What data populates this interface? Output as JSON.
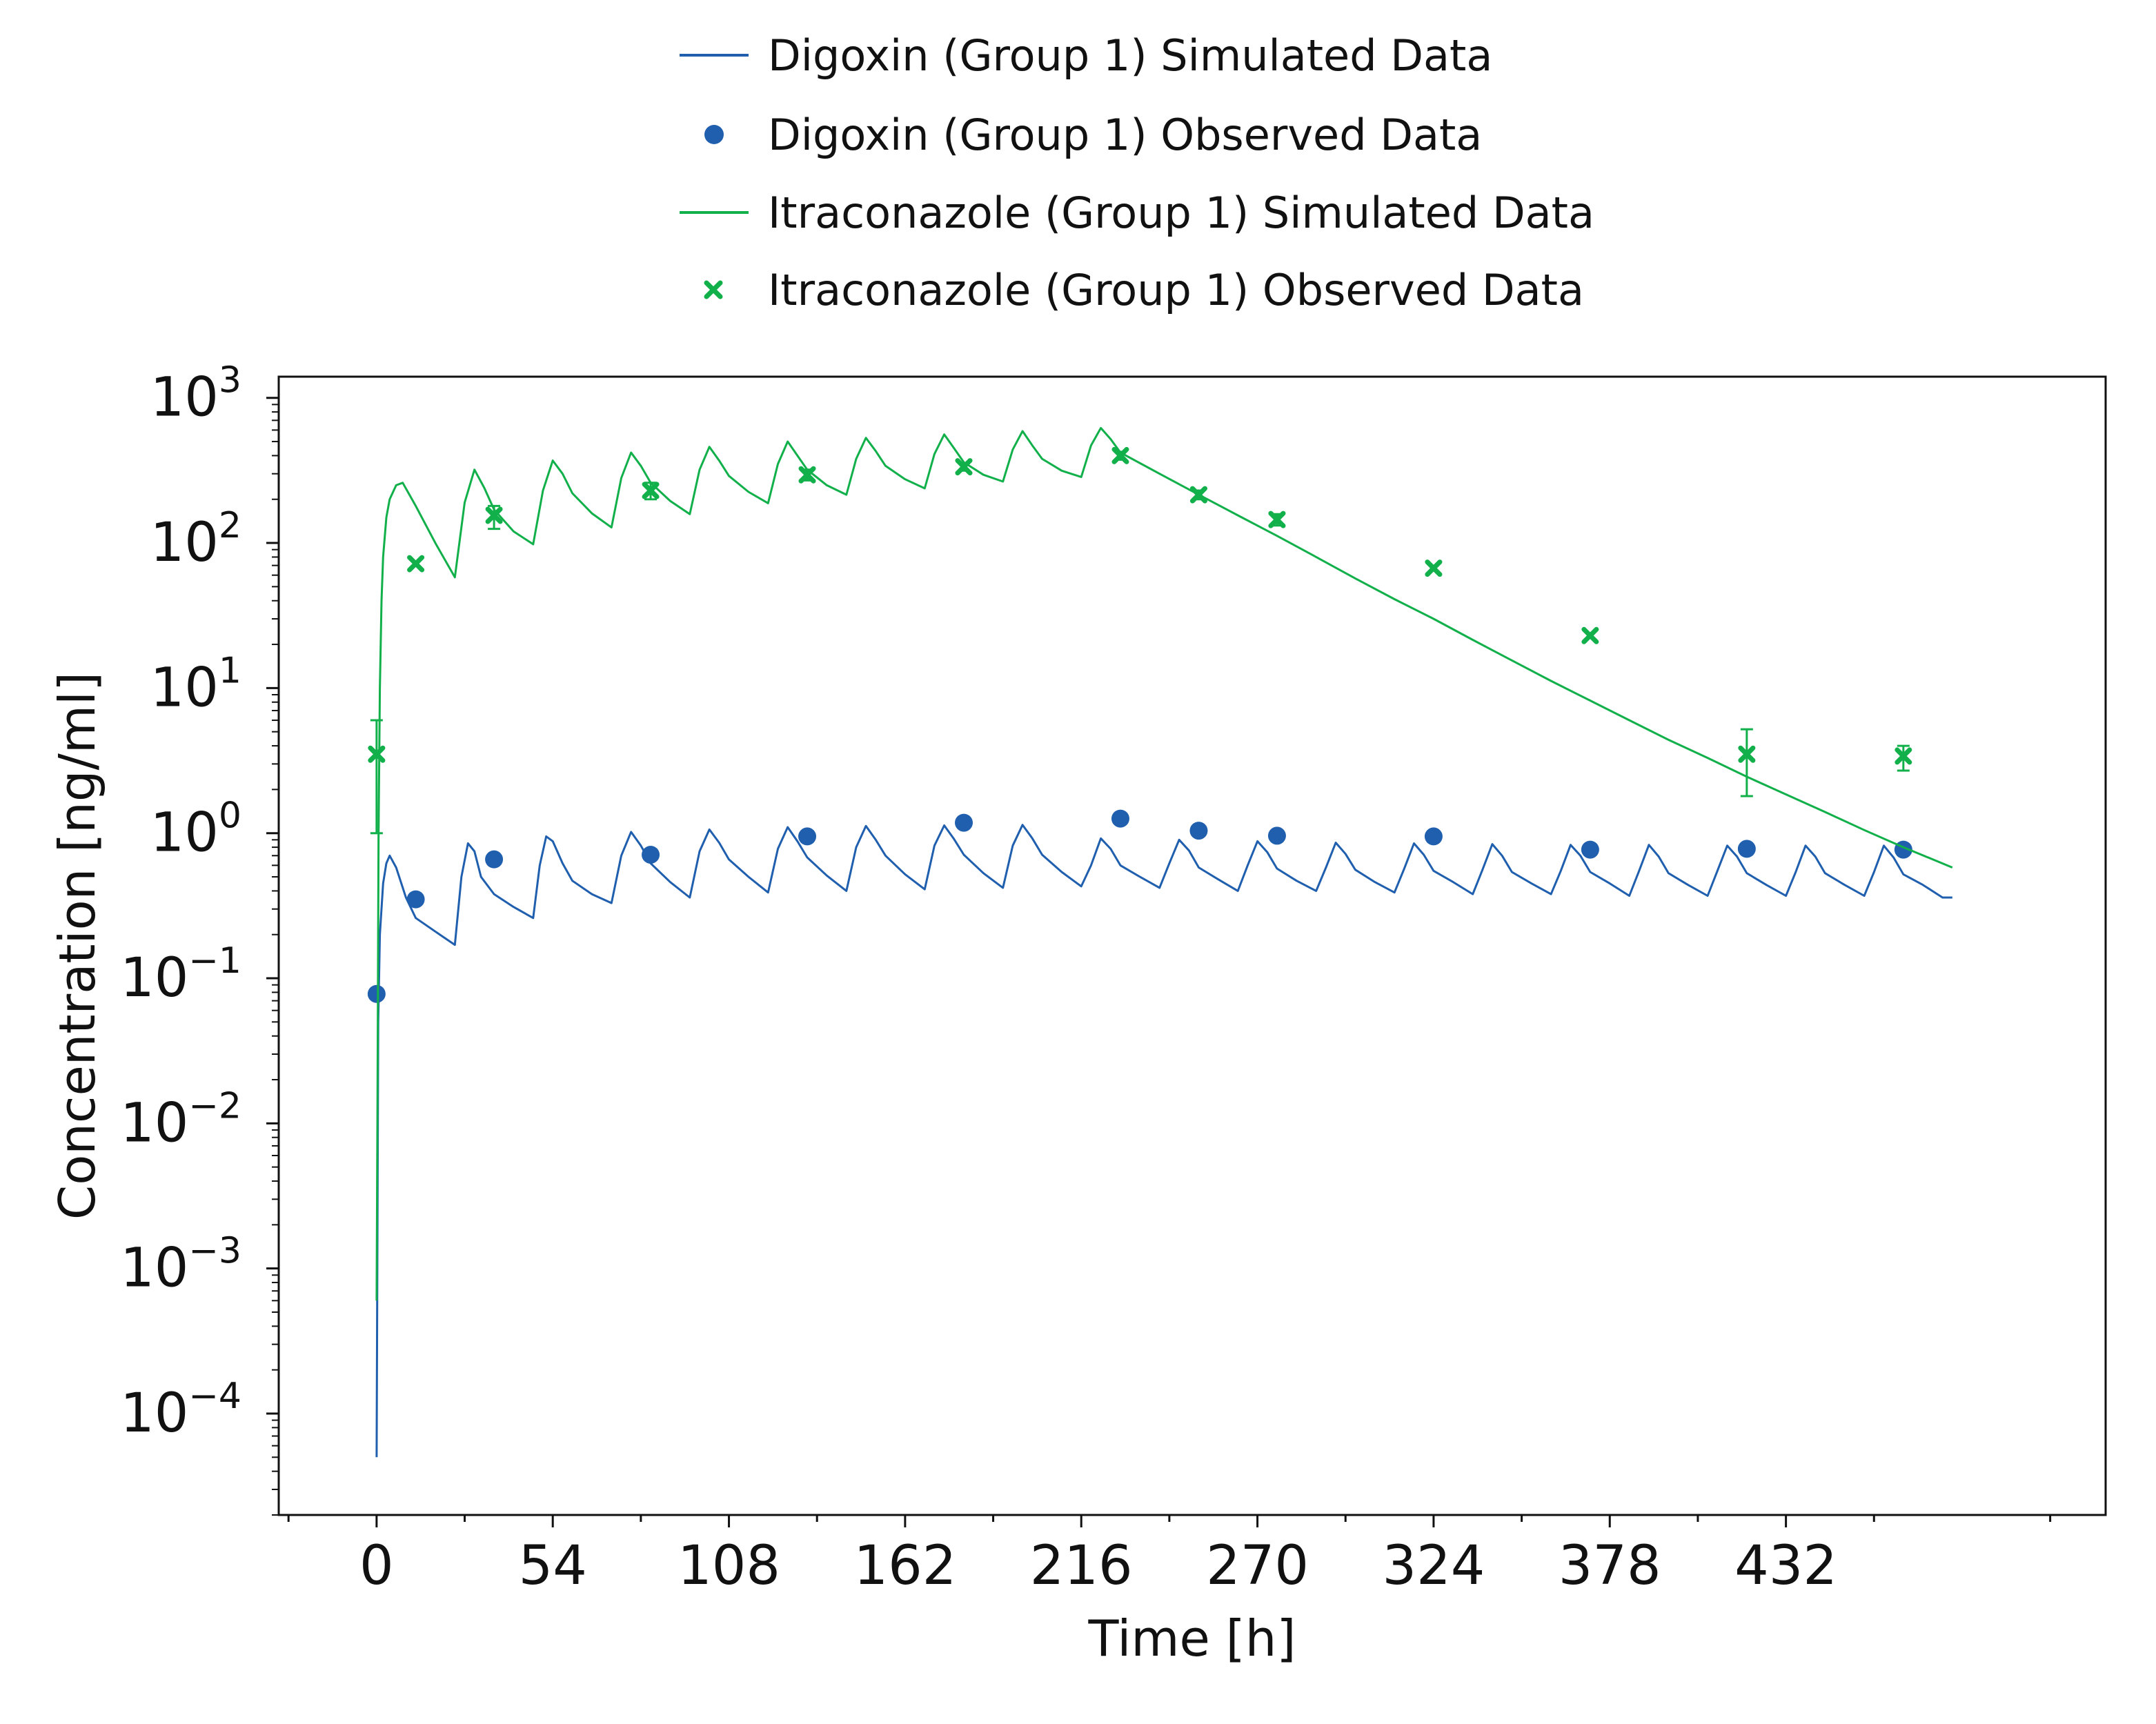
{
  "chart_data": {
    "type": "line",
    "title": "",
    "xlabel": "Time [h]",
    "ylabel": "Concentration [ng/ml]",
    "x_scale": "linear",
    "y_scale": "log",
    "xlim": [
      -30,
      530
    ],
    "ylim": [
      2e-05,
      1400
    ],
    "x_ticks": [
      "0",
      "54",
      "108",
      "162",
      "216",
      "270",
      "324",
      "378",
      "432"
    ],
    "y_ticks": [
      {
        "base": "10",
        "exp": "−4",
        "value": 0.0001
      },
      {
        "base": "10",
        "exp": "−3",
        "value": 0.001
      },
      {
        "base": "10",
        "exp": "−2",
        "value": 0.01
      },
      {
        "base": "10",
        "exp": "−1",
        "value": 0.1
      },
      {
        "base": "10",
        "exp": "0",
        "value": 1
      },
      {
        "base": "10",
        "exp": "1",
        "value": 10
      },
      {
        "base": "10",
        "exp": "2",
        "value": 100
      },
      {
        "base": "10",
        "exp": "3",
        "value": 1000
      }
    ],
    "grid": false,
    "legend_position": "top-center",
    "colors": {
      "digoxin": "#1f5fae",
      "itraconazole": "#12b04a"
    },
    "legend": [
      "Digoxin (Group 1) Simulated Data",
      "Digoxin (Group 1) Observed Data",
      "Itraconazole (Group 1) Simulated Data",
      "Itraconazole (Group 1) Observed Data"
    ],
    "series": [
      {
        "name": "Digoxin (Group 1) Simulated Data",
        "kind": "line",
        "color": "#1f5fae",
        "x": [
          0,
          0.5,
          1,
          2,
          3,
          4,
          6,
          9,
          12,
          18,
          24,
          26,
          28,
          30,
          32,
          36,
          42,
          48,
          50,
          52,
          54,
          57,
          60,
          66,
          72,
          75,
          78,
          81,
          84,
          90,
          96,
          99,
          102,
          105,
          108,
          114,
          120,
          123,
          126,
          129,
          132,
          138,
          144,
          147,
          150,
          153,
          156,
          162,
          168,
          171,
          174,
          177,
          180,
          186,
          192,
          195,
          198,
          201,
          204,
          210,
          216,
          219,
          222,
          225,
          228,
          234,
          240,
          243,
          246,
          249,
          252,
          258,
          264,
          267,
          270,
          273,
          276,
          282,
          288,
          291,
          294,
          297,
          300,
          306,
          312,
          315,
          318,
          321,
          324,
          330,
          336,
          339,
          342,
          345,
          348,
          354,
          360,
          363,
          366,
          369,
          372,
          378,
          384,
          387,
          390,
          393,
          396,
          402,
          408,
          411,
          414,
          417,
          420,
          426,
          432,
          435,
          438,
          441,
          444,
          450,
          456,
          459,
          462,
          465,
          468,
          474,
          480,
          483
        ],
        "y": [
          5e-05,
          0.05,
          0.2,
          0.45,
          0.62,
          0.7,
          0.58,
          0.36,
          0.26,
          0.21,
          0.17,
          0.5,
          0.85,
          0.75,
          0.5,
          0.38,
          0.31,
          0.26,
          0.6,
          0.95,
          0.88,
          0.62,
          0.47,
          0.38,
          0.33,
          0.7,
          1.02,
          0.82,
          0.62,
          0.46,
          0.36,
          0.75,
          1.06,
          0.86,
          0.66,
          0.5,
          0.39,
          0.78,
          1.1,
          0.88,
          0.68,
          0.51,
          0.4,
          0.8,
          1.12,
          0.9,
          0.7,
          0.52,
          0.41,
          0.82,
          1.13,
          0.91,
          0.71,
          0.53,
          0.42,
          0.82,
          1.14,
          0.92,
          0.71,
          0.54,
          0.43,
          0.6,
          0.92,
          0.78,
          0.6,
          0.5,
          0.42,
          0.62,
          0.9,
          0.76,
          0.58,
          0.48,
          0.4,
          0.6,
          0.88,
          0.74,
          0.57,
          0.47,
          0.4,
          0.58,
          0.86,
          0.72,
          0.56,
          0.46,
          0.39,
          0.57,
          0.85,
          0.71,
          0.55,
          0.46,
          0.38,
          0.56,
          0.84,
          0.7,
          0.54,
          0.45,
          0.38,
          0.55,
          0.83,
          0.7,
          0.54,
          0.45,
          0.37,
          0.55,
          0.83,
          0.69,
          0.53,
          0.44,
          0.37,
          0.55,
          0.82,
          0.69,
          0.53,
          0.44,
          0.37,
          0.54,
          0.82,
          0.69,
          0.53,
          0.44,
          0.37,
          0.54,
          0.82,
          0.68,
          0.52,
          0.44,
          0.36,
          0.36
        ]
      },
      {
        "name": "Digoxin (Group 1) Observed Data",
        "kind": "scatter",
        "marker": "circle",
        "color": "#1f5fae",
        "x": [
          0,
          12,
          36,
          84,
          132,
          180,
          228,
          252,
          276,
          324,
          372,
          420,
          468
        ],
        "y": [
          0.078,
          0.35,
          0.66,
          0.71,
          0.95,
          1.18,
          1.26,
          1.04,
          0.96,
          0.95,
          0.77,
          0.78,
          0.77
        ]
      },
      {
        "name": "Itraconazole (Group 1) Simulated Data",
        "kind": "line",
        "color": "#12b04a",
        "x": [
          0,
          0.3,
          0.6,
          1,
          1.5,
          2,
          3,
          4,
          6,
          8,
          12,
          18,
          24,
          27,
          30,
          33,
          36,
          42,
          48,
          51,
          54,
          57,
          60,
          66,
          72,
          75,
          78,
          81,
          84,
          90,
          96,
          99,
          102,
          105,
          108,
          114,
          120,
          123,
          126,
          129,
          132,
          138,
          144,
          147,
          150,
          153,
          156,
          162,
          168,
          171,
          174,
          177,
          180,
          186,
          192,
          195,
          198,
          201,
          204,
          210,
          216,
          219,
          222,
          225,
          228,
          240,
          252,
          264,
          276,
          288,
          300,
          312,
          324,
          336,
          348,
          360,
          372,
          384,
          396,
          408,
          420,
          432,
          444,
          456,
          468,
          483
        ],
        "y": [
          0.0006,
          0.02,
          1,
          10,
          40,
          80,
          150,
          200,
          250,
          260,
          180,
          100,
          58,
          190,
          320,
          240,
          170,
          120,
          98,
          230,
          370,
          300,
          220,
          160,
          128,
          280,
          420,
          340,
          260,
          195,
          158,
          320,
          460,
          370,
          290,
          225,
          188,
          350,
          500,
          400,
          320,
          250,
          215,
          380,
          530,
          430,
          340,
          275,
          238,
          410,
          560,
          450,
          360,
          295,
          265,
          440,
          590,
          470,
          380,
          315,
          285,
          470,
          620,
          520,
          420,
          300,
          215,
          155,
          112,
          80,
          57,
          41,
          30,
          21.5,
          15.5,
          11.2,
          8.2,
          6,
          4.4,
          3.3,
          2.45,
          1.85,
          1.4,
          1.05,
          0.8,
          0.58
        ]
      },
      {
        "name": "Itraconazole (Group 1) Observed Data",
        "kind": "scatter",
        "marker": "x",
        "color": "#12b04a",
        "x": [
          0,
          12,
          36,
          84,
          132,
          180,
          228,
          252,
          276,
          324,
          372,
          420,
          468
        ],
        "y": [
          3.5,
          72,
          155,
          230,
          295,
          335,
          400,
          215,
          145,
          67,
          23,
          3.5,
          3.4
        ],
        "err_low": [
          1.0,
          72,
          125,
          200,
          270,
          315,
          375,
          200,
          132,
          67,
          23,
          1.8,
          2.7
        ],
        "err_high": [
          6.0,
          72,
          180,
          260,
          320,
          355,
          425,
          230,
          158,
          67,
          23,
          5.2,
          4.0
        ]
      }
    ]
  }
}
